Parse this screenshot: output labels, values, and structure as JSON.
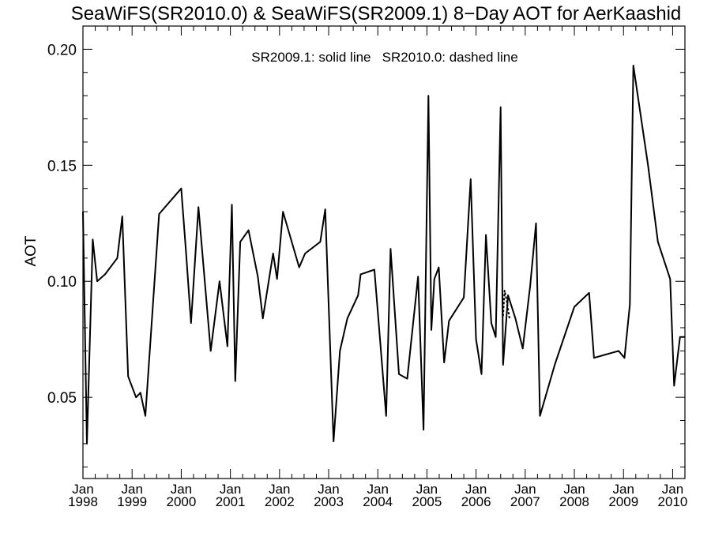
{
  "chart_data": {
    "type": "line",
    "title": "SeaWiFS(SR2010.0) & SeaWiFS(SR2009.1) 8−Day AOT for AerKaashid",
    "annotation": "SR2009.1: solid line   SR2010.0: dashed line",
    "ylabel": "AOT",
    "xlabel": "",
    "xlim": [
      1998.0,
      2010.25
    ],
    "ylim": [
      0.015,
      0.21
    ],
    "yticks": [
      0.05,
      0.1,
      0.15,
      0.2
    ],
    "ytick_labels": [
      "0.05",
      "0.10",
      "0.15",
      "0.20"
    ],
    "xticks": [
      {
        "year": 1998,
        "label_top": "Jan",
        "label_bottom": "1998"
      },
      {
        "year": 1999,
        "label_top": "Jan",
        "label_bottom": "1999"
      },
      {
        "year": 2000,
        "label_top": "Jan",
        "label_bottom": "2000"
      },
      {
        "year": 2001,
        "label_top": "Jan",
        "label_bottom": "2001"
      },
      {
        "year": 2002,
        "label_top": "Jan",
        "label_bottom": "2002"
      },
      {
        "year": 2003,
        "label_top": "Jan",
        "label_bottom": "2003"
      },
      {
        "year": 2004,
        "label_top": "Jan",
        "label_bottom": "2004"
      },
      {
        "year": 2005,
        "label_top": "Jan",
        "label_bottom": "2005"
      },
      {
        "year": 2006,
        "label_top": "Jan",
        "label_bottom": "2006"
      },
      {
        "year": 2007,
        "label_top": "Jan",
        "label_bottom": "2007"
      },
      {
        "year": 2008,
        "label_top": "Jan",
        "label_bottom": "2008"
      },
      {
        "year": 2009,
        "label_top": "Jan",
        "label_bottom": "2009"
      },
      {
        "year": 2010,
        "label_top": "Jan",
        "label_bottom": "2010"
      }
    ],
    "series": [
      {
        "style": "solid",
        "color": "#000000",
        "x": [
          1998.0,
          1998.08,
          1998.2,
          1998.29,
          1998.45,
          1998.7,
          1998.8,
          1998.92,
          1999.08,
          1999.17,
          1999.27,
          1999.55,
          2000.0,
          2000.1,
          2000.2,
          2000.35,
          2000.6,
          2000.78,
          2000.94,
          2001.03,
          2001.1,
          2001.2,
          2001.37,
          2001.56,
          2001.66,
          2001.87,
          2001.95,
          2002.07,
          2002.4,
          2002.52,
          2002.83,
          2002.93,
          2003.1,
          2003.23,
          2003.38,
          2003.6,
          2003.65,
          2003.93,
          2004.0,
          2004.17,
          2004.26,
          2004.43,
          2004.6,
          2004.82,
          2004.93,
          2005.03,
          2005.09,
          2005.15,
          2005.24,
          2005.35,
          2005.45,
          2005.75,
          2005.89,
          2006.0,
          2006.11,
          2006.2,
          2006.31,
          2006.4,
          2006.5,
          2006.55,
          2006.65,
          2006.8,
          2006.95,
          2007.1,
          2007.22,
          2007.3,
          2007.6,
          2008.0,
          2008.3,
          2008.4,
          2008.9,
          2009.02,
          2009.13,
          2009.2,
          2009.5,
          2009.7,
          2009.95,
          2010.03,
          2010.15,
          2010.25
        ],
        "y": [
          0.13,
          0.03,
          0.118,
          0.1,
          0.103,
          0.11,
          0.128,
          0.059,
          0.05,
          0.052,
          0.042,
          0.129,
          0.14,
          0.112,
          0.082,
          0.132,
          0.07,
          0.1,
          0.072,
          0.133,
          0.057,
          0.117,
          0.122,
          0.102,
          0.084,
          0.112,
          0.101,
          0.13,
          0.106,
          0.112,
          0.117,
          0.131,
          0.031,
          0.07,
          0.084,
          0.094,
          0.103,
          0.105,
          0.087,
          0.042,
          0.114,
          0.06,
          0.058,
          0.102,
          0.036,
          0.18,
          0.079,
          0.101,
          0.106,
          0.065,
          0.083,
          0.093,
          0.144,
          0.075,
          0.06,
          0.12,
          0.082,
          0.076,
          0.175,
          0.064,
          0.094,
          0.084,
          0.071,
          0.098,
          0.125,
          0.042,
          0.064,
          0.089,
          0.095,
          0.067,
          0.07,
          0.067,
          0.09,
          0.193,
          0.15,
          0.117,
          0.101,
          0.055,
          0.076,
          0.076
        ]
      },
      {
        "style": "dashed",
        "color": "#000000",
        "x": [
          2006.55,
          2006.58,
          2006.62,
          2006.65,
          2006.68
        ],
        "y": [
          0.085,
          0.096,
          0.092,
          0.088,
          0.084
        ]
      }
    ],
    "grid": false,
    "legend": "none"
  }
}
